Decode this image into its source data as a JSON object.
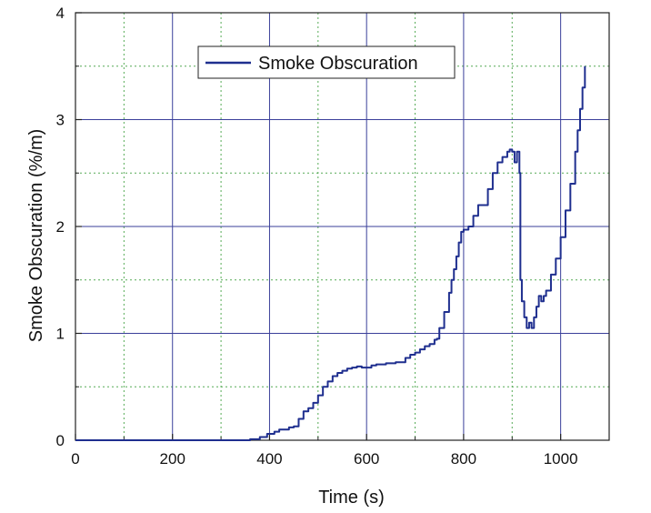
{
  "chart_data": {
    "type": "line",
    "xlabel": "Time (s)",
    "ylabel": "Smoke Obscuration  (%/m)",
    "xlim": [
      0,
      1100
    ],
    "ylim": [
      0,
      4
    ],
    "x_ticks": [
      0,
      200,
      400,
      600,
      800,
      1000
    ],
    "x_tick_labels": [
      "0",
      "200",
      "400",
      "600",
      "800",
      "1000"
    ],
    "y_ticks": [
      0,
      1,
      2,
      3,
      4
    ],
    "y_tick_labels": [
      "0",
      "1",
      "2",
      "3",
      "4"
    ],
    "grid": {
      "major": true,
      "minor": true
    },
    "legend_position": "top-center",
    "colors": {
      "series": "#1f2f8f",
      "major_grid": "#3a3f9a",
      "minor_grid": "#55aa55",
      "axis": "#222222"
    },
    "series": [
      {
        "name": "Smoke Obscuration",
        "x": [
          0,
          340,
          360,
          380,
          395,
          410,
          420,
          440,
          450,
          460,
          470,
          480,
          490,
          500,
          510,
          520,
          530,
          540,
          550,
          560,
          570,
          580,
          590,
          600,
          610,
          620,
          640,
          660,
          680,
          690,
          700,
          710,
          720,
          730,
          740,
          745,
          750,
          760,
          770,
          775,
          780,
          785,
          790,
          795,
          800,
          810,
          820,
          830,
          840,
          850,
          860,
          870,
          880,
          890,
          895,
          900,
          905,
          910,
          915,
          917,
          920,
          925,
          930,
          935,
          940,
          945,
          950,
          955,
          960,
          965,
          970,
          980,
          990,
          1000,
          1010,
          1020,
          1030,
          1035,
          1040,
          1045,
          1050
        ],
        "y": [
          0,
          0,
          0.01,
          0.03,
          0.06,
          0.08,
          0.1,
          0.12,
          0.13,
          0.2,
          0.27,
          0.3,
          0.35,
          0.42,
          0.5,
          0.55,
          0.6,
          0.63,
          0.65,
          0.67,
          0.68,
          0.69,
          0.68,
          0.68,
          0.7,
          0.71,
          0.72,
          0.73,
          0.77,
          0.8,
          0.82,
          0.85,
          0.88,
          0.9,
          0.94,
          0.95,
          1.05,
          1.2,
          1.38,
          1.5,
          1.6,
          1.72,
          1.85,
          1.95,
          1.97,
          2.0,
          2.1,
          2.2,
          2.2,
          2.35,
          2.5,
          2.6,
          2.65,
          2.7,
          2.72,
          2.7,
          2.6,
          2.7,
          2.5,
          1.5,
          1.3,
          1.15,
          1.05,
          1.1,
          1.05,
          1.15,
          1.25,
          1.35,
          1.3,
          1.35,
          1.4,
          1.55,
          1.7,
          1.9,
          2.15,
          2.4,
          2.7,
          2.9,
          3.1,
          3.3,
          3.5
        ]
      }
    ]
  }
}
